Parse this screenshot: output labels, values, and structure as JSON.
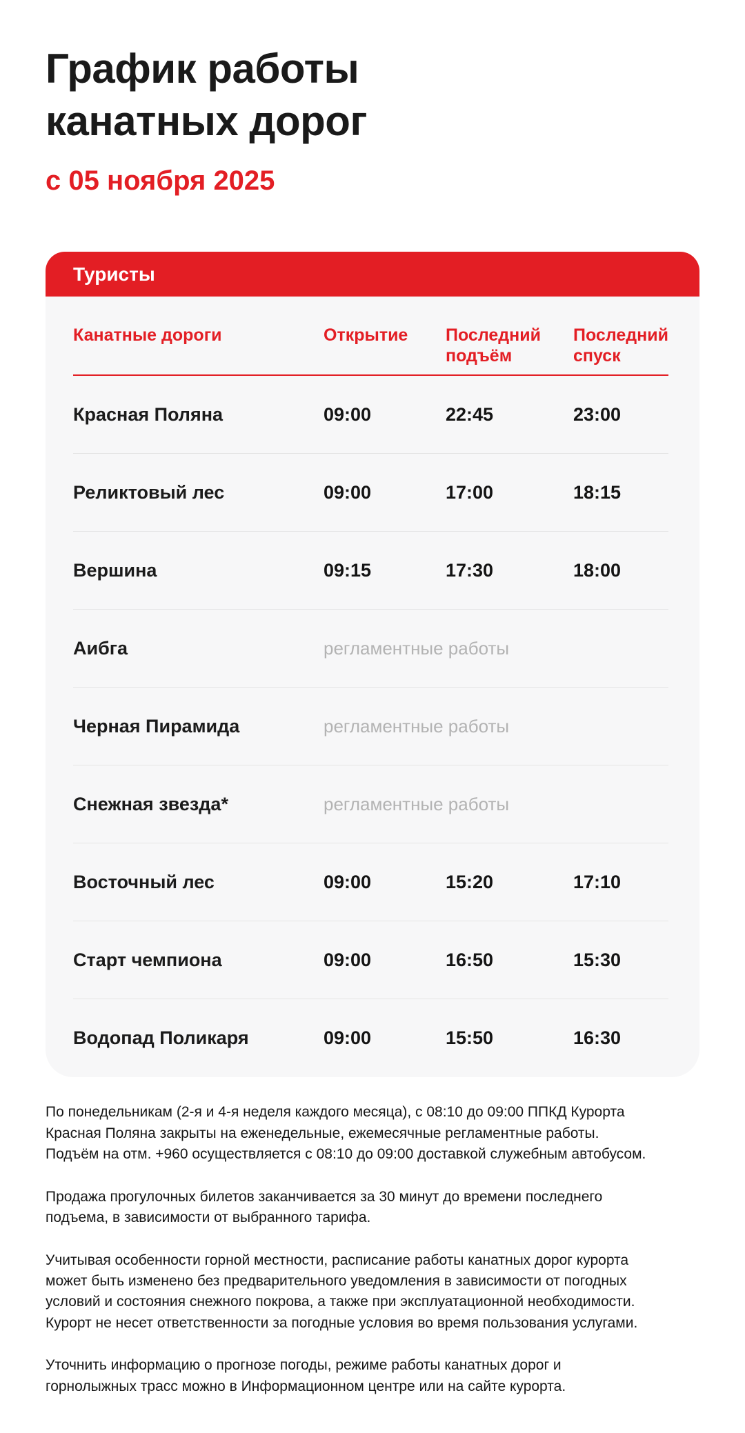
{
  "header": {
    "title_line1": "График работы",
    "title_line2": "канатных дорог",
    "subtitle": "с 05 ноября 2025"
  },
  "section": {
    "banner_label": "Туристы"
  },
  "table": {
    "columns": [
      "Канатные дороги",
      "Открытие",
      "Последний подъём",
      "Последний спуск"
    ],
    "maintenance_label": "регламентные работы",
    "rows": [
      {
        "name": "Красная Поляна",
        "open": "09:00",
        "last_up": "22:45",
        "last_down": "23:00",
        "maintenance": false
      },
      {
        "name": "Реликтовый лес",
        "open": "09:00",
        "last_up": "17:00",
        "last_down": "18:15",
        "maintenance": false
      },
      {
        "name": "Вершина",
        "open": "09:15",
        "last_up": "17:30",
        "last_down": "18:00",
        "maintenance": false
      },
      {
        "name": "Аибга",
        "open": "",
        "last_up": "",
        "last_down": "",
        "maintenance": true
      },
      {
        "name": "Черная Пирамида",
        "open": "",
        "last_up": "",
        "last_down": "",
        "maintenance": true
      },
      {
        "name": "Снежная звезда*",
        "open": "",
        "last_up": "",
        "last_down": "",
        "maintenance": true
      },
      {
        "name": "Восточный лес",
        "open": "09:00",
        "last_up": "15:20",
        "last_down": "17:10",
        "maintenance": false
      },
      {
        "name": "Старт чемпиона",
        "open": "09:00",
        "last_up": "16:50",
        "last_down": "15:30",
        "maintenance": false
      },
      {
        "name": "Водопад Поликаря",
        "open": "09:00",
        "last_up": "15:50",
        "last_down": "16:30",
        "maintenance": false
      }
    ]
  },
  "footnotes": [
    "По понедельникам (2-я и 4-я неделя каждого месяца), с 08:10 до 09:00 ППКД Курорта Красная Поляна закрыты на еженедельные, ежемесячные регламентные работы. Подъём на отм. +960 осуществляется с 08:10 до 09:00 доставкой служебным автобусом.",
    "Продажа прогулочных билетов заканчивается за 30 минут до времени последнего подъема, в зависимости от выбранного тарифа.",
    "Учитывая особенности горной местности, расписание работы канатных дорог курорта может быть изменено без предварительного уведомления в зависимости от погодных условий и состояния снежного покрова, а также при эксплуатационной необходимости. Курорт не несет ответственности за погодные условия во время пользования услугами.",
    "Уточнить информацию о прогнозе погоды, режиме работы канатных дорог и горнолыжных трасс можно в Информационном центре или на сайте курорта."
  ],
  "colors": {
    "accent_red": "#e31e24",
    "panel_background": "#f7f7f8",
    "muted_gray": "#b3b3b3",
    "separator": "#e4e4e4",
    "text_black": "#1b1b1b"
  }
}
